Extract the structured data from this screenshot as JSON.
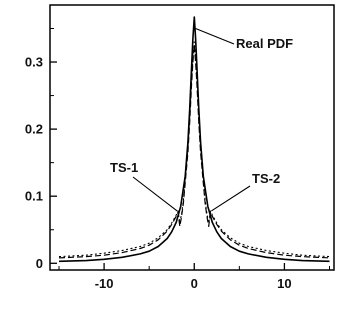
{
  "chart_data": {
    "type": "line",
    "title": "",
    "xlabel": "",
    "ylabel": "",
    "xlim": [
      -16,
      15.5
    ],
    "ylim": [
      -0.01,
      0.385
    ],
    "x_ticks": [
      -10,
      0,
      10
    ],
    "y_ticks": [
      0,
      0.1,
      0.2,
      0.3
    ],
    "x_tick_labels": [
      "-10",
      "0",
      "10"
    ],
    "y_tick_labels": [
      "0",
      "0.1",
      "0.2",
      "0.3"
    ],
    "grid": false,
    "legend": "none",
    "series": [
      {
        "name": "Real PDF",
        "style": "solid",
        "x": [
          -15,
          -12,
          -10,
          -8,
          -6,
          -5,
          -4,
          -3,
          -2.5,
          -2,
          -1.5,
          -1,
          -0.7,
          -0.5,
          -0.3,
          -0.15,
          0,
          0.15,
          0.3,
          0.5,
          0.7,
          1,
          1.5,
          2,
          2.5,
          3,
          4,
          5,
          6,
          8,
          10,
          12,
          15
        ],
        "y": [
          0.003,
          0.004,
          0.006,
          0.009,
          0.014,
          0.018,
          0.025,
          0.037,
          0.047,
          0.061,
          0.085,
          0.13,
          0.18,
          0.23,
          0.29,
          0.335,
          0.367,
          0.335,
          0.29,
          0.23,
          0.18,
          0.13,
          0.085,
          0.061,
          0.047,
          0.037,
          0.025,
          0.018,
          0.014,
          0.009,
          0.006,
          0.004,
          0.003
        ]
      },
      {
        "name": "TS-1",
        "style": "dashed",
        "x": [
          -15,
          -12,
          -10,
          -8,
          -6,
          -5,
          -4,
          -3,
          -2.5,
          -2,
          -1.8,
          -1.6,
          -1.4,
          -1.2,
          -1,
          -0.7,
          -0.5,
          -0.3,
          -0.15,
          0,
          0.15,
          0.3,
          0.5,
          0.7,
          1,
          1.2,
          1.4,
          1.6,
          1.8,
          2,
          2.5,
          3,
          4,
          5,
          6,
          8,
          10,
          12,
          15
        ],
        "y": [
          0.008,
          0.01,
          0.012,
          0.016,
          0.022,
          0.027,
          0.035,
          0.048,
          0.058,
          0.07,
          0.076,
          0.055,
          0.07,
          0.09,
          0.12,
          0.165,
          0.21,
          0.265,
          0.3,
          0.325,
          0.3,
          0.265,
          0.21,
          0.165,
          0.12,
          0.09,
          0.07,
          0.055,
          0.076,
          0.07,
          0.058,
          0.048,
          0.035,
          0.027,
          0.022,
          0.016,
          0.012,
          0.01,
          0.008
        ]
      },
      {
        "name": "TS-2",
        "style": "dotted",
        "x": [
          -15,
          -12,
          -10,
          -8,
          -6,
          -5,
          -4,
          -3,
          -2.5,
          -2,
          -1.8,
          -1.6,
          -1.4,
          -1.2,
          -1,
          -0.7,
          -0.5,
          -0.3,
          -0.15,
          0,
          0.15,
          0.3,
          0.5,
          0.7,
          1,
          1.2,
          1.4,
          1.6,
          1.8,
          2,
          2.5,
          3,
          4,
          5,
          6,
          8,
          10,
          12,
          15
        ],
        "y": [
          0.01,
          0.012,
          0.015,
          0.019,
          0.025,
          0.03,
          0.038,
          0.05,
          0.06,
          0.072,
          0.078,
          0.06,
          0.074,
          0.094,
          0.125,
          0.17,
          0.215,
          0.27,
          0.305,
          0.33,
          0.305,
          0.27,
          0.215,
          0.17,
          0.125,
          0.094,
          0.074,
          0.06,
          0.078,
          0.072,
          0.06,
          0.05,
          0.038,
          0.03,
          0.025,
          0.019,
          0.015,
          0.012,
          0.01
        ]
      }
    ],
    "annotations": [
      {
        "text": "Real PDF",
        "target": [
          0.15,
          0.35
        ]
      },
      {
        "text": "TS-1",
        "target": [
          -1.9,
          0.078
        ]
      },
      {
        "text": "TS-2",
        "target": [
          1.9,
          0.078
        ]
      }
    ]
  }
}
